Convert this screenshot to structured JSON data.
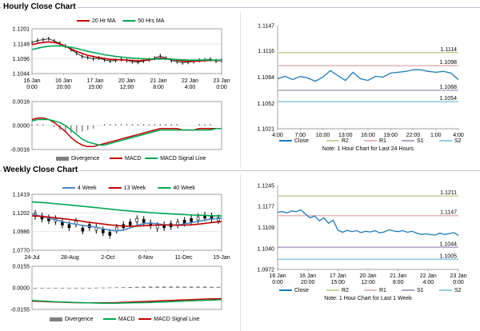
{
  "sections": {
    "hourly_title": "Hourly Close Chart",
    "weekly_title": "Weekly Close Chart"
  },
  "colors": {
    "ma_short": "#c00000",
    "ma_long": "#00a651",
    "ma_week4": "#4a87c7",
    "price": "#000000",
    "close_line": "#1f7ab8",
    "r2": "#c3d69b",
    "r1": "#e6b9b8",
    "s1": "#b3a2c7",
    "s2": "#93cddd",
    "divergence": "#808080",
    "macd": "#c00000",
    "signal": "#00a651",
    "frame": "#808080",
    "grid": "#d9d9d9"
  },
  "chart_data": [
    {
      "id": "hourly_price",
      "type": "line",
      "legend": [
        "20 Hr MA",
        "50 Hrs MA"
      ],
      "x_ticks": [
        "16 Jan\n0:00",
        "16 Jan\n20:00",
        "17 Jan\n15:00",
        "20 Jan\n12:00",
        "21 Jan\n8:00",
        "22 Jan\n4:00",
        "23 Jan\n0:00"
      ],
      "y_ticks": [
        "1.1201",
        "1.1148",
        "1.1096",
        "1.1044"
      ],
      "ylim": [
        1.1044,
        1.1201
      ],
      "series": [
        {
          "name": "Price",
          "values": [
            1.1152,
            1.116,
            1.1163,
            1.1166,
            1.1158,
            1.115,
            1.114,
            1.1128,
            1.1115,
            1.1104,
            1.11,
            1.1096,
            1.1098,
            1.1092,
            1.1088,
            1.109,
            1.1094,
            1.109,
            1.1086,
            1.1084,
            1.1088,
            1.1092,
            1.1098,
            1.1106,
            1.1098,
            1.109,
            1.1086,
            1.1082,
            1.1084,
            1.1086,
            1.109,
            1.1092,
            1.1094,
            1.1088,
            1.109
          ]
        },
        {
          "name": "20 Hr MA",
          "values": [
            1.1145,
            1.115,
            1.1153,
            1.1155,
            1.1153,
            1.1148,
            1.114,
            1.113,
            1.1122,
            1.1115,
            1.1108,
            1.1104,
            1.11,
            1.1097,
            1.1094,
            1.1093,
            1.1092,
            1.1091,
            1.109,
            1.1089,
            1.109,
            1.1092,
            1.1095,
            1.1098,
            1.1097,
            1.1094,
            1.1091,
            1.1088,
            1.1087,
            1.1087,
            1.1088,
            1.1089,
            1.109,
            1.109,
            1.109
          ]
        },
        {
          "name": "50 Hrs MA",
          "values": [
            1.1128,
            1.1133,
            1.1137,
            1.114,
            1.1141,
            1.1141,
            1.1139,
            1.1136,
            1.1132,
            1.1127,
            1.1122,
            1.1118,
            1.1114,
            1.111,
            1.1107,
            1.1104,
            1.1102,
            1.11,
            1.1098,
            1.1097,
            1.1096,
            1.1095,
            1.1095,
            1.1095,
            1.1095,
            1.1094,
            1.1093,
            1.1092,
            1.1091,
            1.1091,
            1.1091,
            1.1091,
            1.1091,
            1.1091,
            1.1091
          ]
        }
      ]
    },
    {
      "id": "hourly_macd",
      "type": "line",
      "legend": [
        "Divergence",
        "MACD",
        "MACD Signal Line"
      ],
      "y_ticks": [
        "0.0016",
        "0.0000",
        "-0.0016"
      ],
      "ylim": [
        -0.0016,
        0.0016
      ],
      "series": [
        {
          "name": "MACD",
          "values": [
            0.0004,
            0.0005,
            0.0005,
            0.0004,
            0.0002,
            -0.0001,
            -0.0004,
            -0.0008,
            -0.0011,
            -0.0013,
            -0.0014,
            -0.0014,
            -0.0013,
            -0.0012,
            -0.0011,
            -0.001,
            -0.0009,
            -0.0008,
            -0.0007,
            -0.0006,
            -0.0005,
            -0.0004,
            -0.0003,
            -0.0002,
            -0.0002,
            -0.0002,
            -0.0002,
            -0.0003,
            -0.0003,
            -0.0003,
            -0.0002,
            -0.0002,
            -0.0002,
            -0.0002,
            -0.0002
          ]
        },
        {
          "name": "MACD Signal Line",
          "values": [
            0.0003,
            0.0004,
            0.0004,
            0.0004,
            0.0003,
            0.0002,
            0.0,
            -0.0003,
            -0.0006,
            -0.0009,
            -0.0011,
            -0.0012,
            -0.0013,
            -0.0013,
            -0.0012,
            -0.0011,
            -0.001,
            -0.0009,
            -0.0008,
            -0.0007,
            -0.0006,
            -0.0005,
            -0.0004,
            -0.0003,
            -0.0003,
            -0.0003,
            -0.0003,
            -0.0003,
            -0.0003,
            -0.0003,
            -0.0003,
            -0.0003,
            -0.0003,
            -0.0002,
            -0.0002
          ]
        },
        {
          "name": "Divergence",
          "values": [
            0.0001,
            0.0001,
            0.0001,
            0.0,
            -0.0001,
            -0.0003,
            -0.0004,
            -0.0005,
            -0.0005,
            -0.0004,
            -0.0003,
            -0.0002,
            0.0,
            0.0001,
            0.0001,
            0.0001,
            0.0001,
            0.0001,
            0.0001,
            0.0001,
            0.0001,
            0.0001,
            0.0001,
            0.0001,
            0.0001,
            0.0001,
            0.0001,
            0.0,
            0.0,
            0.0,
            0.0001,
            0.0001,
            0.0001,
            0.0,
            0.0
          ]
        }
      ]
    },
    {
      "id": "hourly_close",
      "type": "line",
      "legend": [
        "Close",
        "R2",
        "R1",
        "S1",
        "S2"
      ],
      "note": "Note: 1 Hour Chart for Last 24 Hours",
      "x_ticks": [
        "4:00",
        "7:00",
        "10:00",
        "13:00",
        "16:00",
        "19:00",
        "22:00",
        "1:00",
        "4:00"
      ],
      "y_ticks": [
        "1.1147",
        "1.1116",
        "1.1084",
        "1.1052",
        "1.1021"
      ],
      "ylim": [
        1.1021,
        1.1147
      ],
      "levels": [
        {
          "name": "R2",
          "value": 1.1114,
          "label": "1.1114"
        },
        {
          "name": "R1",
          "value": 1.1098,
          "label": "1.1098"
        },
        {
          "name": "S1",
          "value": 1.1068,
          "label": "1.1068"
        },
        {
          "name": "S2",
          "value": 1.1054,
          "label": "1.1054"
        }
      ],
      "series": [
        {
          "name": "Close",
          "values": [
            1.1082,
            1.1085,
            1.1081,
            1.1085,
            1.1083,
            1.1079,
            1.1084,
            1.1092,
            1.1086,
            1.108,
            1.109,
            1.1082,
            1.108,
            1.1085,
            1.1084,
            1.1089,
            1.109,
            1.1091,
            1.1093,
            1.1093,
            1.1091,
            1.109,
            1.1091,
            1.1089,
            1.1081
          ]
        }
      ]
    },
    {
      "id": "weekly_price",
      "type": "line",
      "legend": [
        "4 Week",
        "13 Week",
        "40 Week"
      ],
      "x_ticks": [
        "24-Jul",
        "28-Aug",
        "2-Oct",
        "6-Nov",
        "11-Dec",
        "15-Jan"
      ],
      "y_ticks": [
        "1.1419",
        "1.1202",
        "1.0986",
        "1.0770"
      ],
      "ylim": [
        1.077,
        1.1419
      ],
      "series": [
        {
          "name": "Price",
          "values": [
            1.118,
            1.115,
            1.113,
            1.112,
            1.108,
            1.105,
            1.109,
            1.101,
            1.105,
            1.102,
            1.099,
            1.096,
            1.102,
            1.105,
            1.108,
            1.112,
            1.111,
            1.107,
            1.104,
            1.105,
            1.106,
            1.108,
            1.11,
            1.112,
            1.114,
            1.116,
            1.115,
            1.113
          ]
        },
        {
          "name": "4 Week",
          "values": [
            1.119,
            1.117,
            1.115,
            1.113,
            1.111,
            1.109,
            1.1075,
            1.106,
            1.105,
            1.104,
            1.102,
            1.1005,
            1.0995,
            1.1005,
            1.103,
            1.106,
            1.108,
            1.1085,
            1.1075,
            1.1065,
            1.106,
            1.1065,
            1.108,
            1.1095,
            1.111,
            1.1125,
            1.1135,
            1.114
          ]
        },
        {
          "name": "13 Week",
          "values": [
            1.117,
            1.1165,
            1.1158,
            1.115,
            1.114,
            1.113,
            1.112,
            1.1108,
            1.1095,
            1.1085,
            1.1075,
            1.1065,
            1.1057,
            1.105,
            1.1048,
            1.105,
            1.1055,
            1.106,
            1.1062,
            1.1063,
            1.1062,
            1.106,
            1.1062,
            1.1068,
            1.1075,
            1.1085,
            1.1095,
            1.1102
          ]
        },
        {
          "name": "40 Week",
          "values": [
            1.133,
            1.1325,
            1.132,
            1.1312,
            1.1305,
            1.1298,
            1.129,
            1.1282,
            1.1273,
            1.1265,
            1.1257,
            1.1248,
            1.124,
            1.1232,
            1.1225,
            1.1218,
            1.1212,
            1.1206,
            1.12,
            1.1195,
            1.119,
            1.1186,
            1.1182,
            1.1178,
            1.1175,
            1.1172,
            1.117,
            1.1168
          ]
        }
      ]
    },
    {
      "id": "weekly_macd",
      "type": "line",
      "legend": [
        "Divergence",
        "MACD",
        "MACD Signal Line"
      ],
      "y_ticks": [
        "0.0155",
        "0.0000",
        "-0.0155"
      ],
      "ylim": [
        -0.0155,
        0.0155
      ],
      "series": [
        {
          "name": "MACD",
          "values": [
            -0.0095,
            -0.0097,
            -0.0099,
            -0.0101,
            -0.0103,
            -0.0105,
            -0.0106,
            -0.0107,
            -0.0108,
            -0.0108,
            -0.0108,
            -0.0107,
            -0.0106,
            -0.0104,
            -0.0102,
            -0.01,
            -0.0098,
            -0.0096,
            -0.0094,
            -0.0092,
            -0.009,
            -0.0088,
            -0.0086,
            -0.0084,
            -0.0082,
            -0.008,
            -0.0079,
            -0.0078
          ]
        },
        {
          "name": "MACD Signal Line",
          "values": [
            -0.009,
            -0.0093,
            -0.0096,
            -0.0099,
            -0.0101,
            -0.0103,
            -0.0105,
            -0.0107,
            -0.0108,
            -0.0109,
            -0.011,
            -0.011,
            -0.011,
            -0.0109,
            -0.0108,
            -0.0107,
            -0.0106,
            -0.0105,
            -0.0103,
            -0.0101,
            -0.0099,
            -0.0097,
            -0.0095,
            -0.0093,
            -0.0091,
            -0.0089,
            -0.0087,
            -0.0085
          ]
        },
        {
          "name": "Divergence",
          "values": [
            -0.0005,
            -0.0004,
            -0.0003,
            -0.0002,
            -0.0002,
            -0.0002,
            -0.0001,
            0.0,
            0.0,
            0.0001,
            0.0002,
            0.0003,
            0.0004,
            0.0005,
            0.0006,
            0.0007,
            0.0008,
            0.0009,
            0.0009,
            0.0009,
            0.0009,
            0.0009,
            0.0009,
            0.0009,
            0.0009,
            0.0009,
            0.0008,
            0.0007
          ]
        }
      ]
    },
    {
      "id": "weekly_close",
      "type": "line",
      "legend": [
        "Close",
        "R2",
        "R1",
        "S1",
        "S2"
      ],
      "note": "Note: 1 Hour Chart for Last 1 Week",
      "x_ticks": [
        "16 Jan\n0:00",
        "16 Jan\n20:00",
        "17 Jan\n15:00",
        "20 Jan\n12:00",
        "21 Jan\n8:00",
        "22 Jan\n4:00",
        "23 Jan\n0:00"
      ],
      "y_ticks": [
        "1.1245",
        "1.1177",
        "1.1109",
        "1.1040",
        "1.0972"
      ],
      "ylim": [
        1.0972,
        1.1245
      ],
      "levels": [
        {
          "name": "R2",
          "value": 1.1211,
          "label": "1.1211"
        },
        {
          "name": "R1",
          "value": 1.1147,
          "label": "1.1147"
        },
        {
          "name": "S1",
          "value": 1.1044,
          "label": "1.1044"
        },
        {
          "name": "S2",
          "value": 1.1005,
          "label": "1.1005"
        }
      ],
      "series": [
        {
          "name": "Close",
          "values": [
            1.1158,
            1.116,
            1.1156,
            1.1162,
            1.116,
            1.1166,
            1.1152,
            1.114,
            1.1146,
            1.113,
            1.114,
            1.1122,
            1.1132,
            1.11,
            1.1093,
            1.1099,
            1.1095,
            1.1098,
            1.1092,
            1.1096,
            1.1094,
            1.1098,
            1.1091,
            1.1094,
            1.1101,
            1.1097,
            1.1095,
            1.1098,
            1.1093,
            1.1096,
            1.109,
            1.1086,
            1.1088,
            1.1085,
            1.1084,
            1.109,
            1.1086,
            1.1088,
            1.1092,
            1.1083
          ]
        }
      ]
    }
  ]
}
